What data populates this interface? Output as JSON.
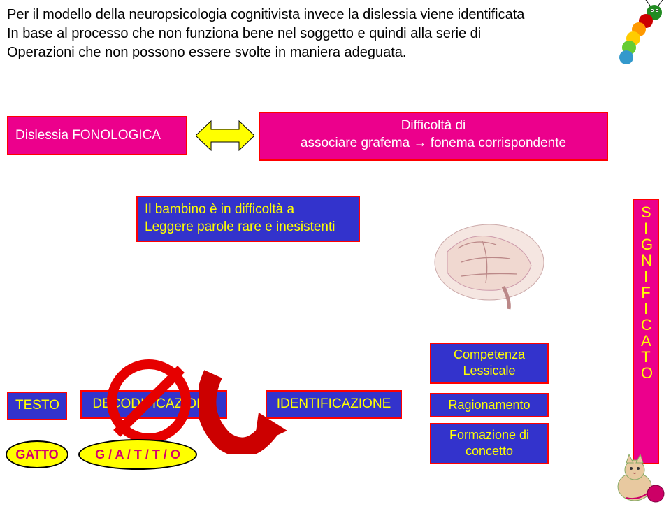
{
  "colors": {
    "magenta_fill": "#ec008c",
    "magenta_text": "#d6006c",
    "blue_fill": "#3333cc",
    "red_border": "#ff0000",
    "yellow_fill": "#ffff00",
    "prohibit_red": "#e60000",
    "curved_arrow": "#cc0000",
    "white": "#ffffff"
  },
  "intro": {
    "line1": "Per il modello della neuropsicologia cognitivista invece la dislessia viene identificata",
    "line2": "In base al processo che non funziona bene nel soggetto e quindi alla serie di",
    "line3": "Operazioni che non possono essere svolte in maniera adeguata."
  },
  "fonologica": "Dislessia FONOLOGICA",
  "difficolta": {
    "line1": "Difficoltà di",
    "line2": "associare grafema →  fonema corrispondente"
  },
  "bambino": {
    "line1": "Il bambino è in difficoltà a",
    "line2": "Leggere parole rare e inesistenti"
  },
  "testo": "TESTO",
  "decodificazione": "DECODIFICAZIONE",
  "identificazione": "IDENTIFICAZIONE",
  "competenza": {
    "l1": "Competenza",
    "l2": "Lessicale"
  },
  "ragionamento": "Ragionamento",
  "formazione": {
    "l1": "Formazione di",
    "l2": "concetto"
  },
  "significato_letters": [
    "S",
    "I",
    "G",
    "N",
    "I",
    "F",
    "I",
    "C",
    "A",
    "T",
    "O"
  ],
  "gatto": "GATTO",
  "spell": "G / A / T / T / O"
}
